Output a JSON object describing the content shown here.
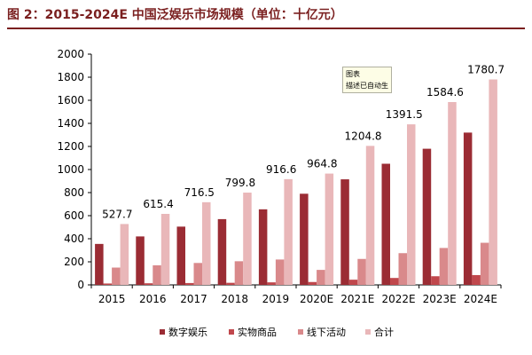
{
  "header": {
    "title": "图 2：2015-2024E 中国泛娱乐市场规模（单位：十亿元）"
  },
  "tooltip": {
    "line1": "图表",
    "line2": "描述已自动生成"
  },
  "colors": {
    "title": "#7a1f1f",
    "series": [
      "#9b2c34",
      "#c0474c",
      "#d9898b",
      "#e9b7b9"
    ]
  },
  "chart_data": {
    "type": "bar",
    "categories": [
      "2015",
      "2016",
      "2017",
      "2018",
      "2019",
      "2020E",
      "2021E",
      "2022E",
      "2023E",
      "2024E"
    ],
    "series": [
      {
        "name": "数字娱乐",
        "values": [
          355,
          420,
          505,
          570,
          655,
          790,
          915,
          1050,
          1180,
          1320
        ]
      },
      {
        "name": "实物商品",
        "values": [
          12,
          14,
          16,
          18,
          22,
          25,
          45,
          60,
          75,
          85
        ]
      },
      {
        "name": "线下活动",
        "values": [
          150,
          170,
          190,
          205,
          220,
          130,
          225,
          275,
          320,
          365
        ]
      },
      {
        "name": "合计",
        "values": [
          527.7,
          615.4,
          716.5,
          799.8,
          916.6,
          964.8,
          1204.8,
          1391.5,
          1584.6,
          1780.7
        ]
      }
    ],
    "data_labels": [
      "527.7",
      "615.4",
      "716.5",
      "799.8",
      "916.6",
      "964.8",
      "1204.8",
      "1391.5",
      "1584.6",
      "1780.7"
    ],
    "yticks": [
      "0",
      "200",
      "400",
      "600",
      "800",
      "1000",
      "1200",
      "1400",
      "1600",
      "1800",
      "2000"
    ],
    "ylim": [
      0,
      2000
    ],
    "grid": false,
    "legend": "bottom-center",
    "title": "",
    "xlabel": "",
    "ylabel": ""
  }
}
